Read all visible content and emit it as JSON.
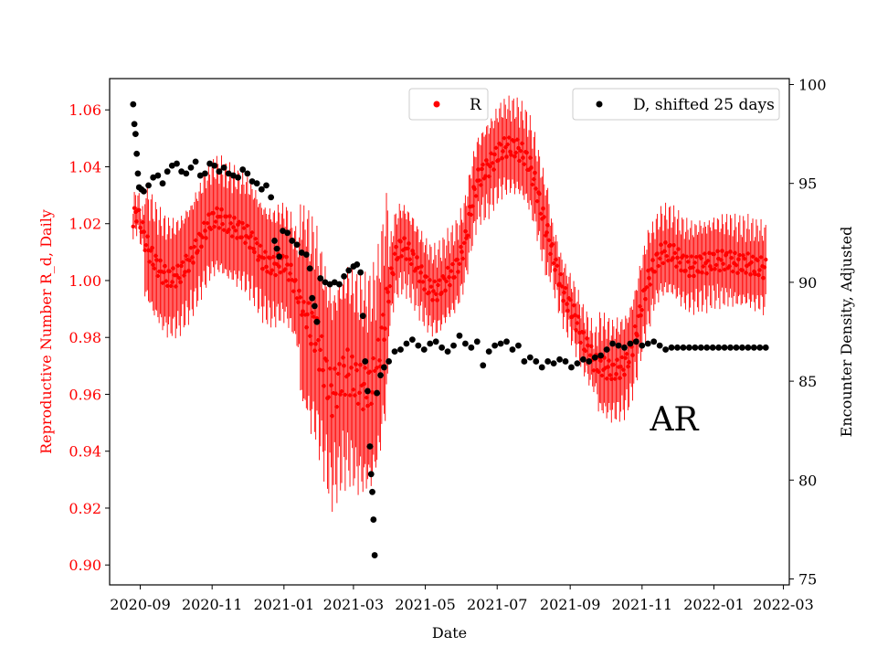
{
  "chart_data": {
    "type": "scatter",
    "annotation": "AR",
    "xlabel": "Date",
    "ylabel_left": "Reproductive Number R_d, Daily",
    "ylabel_right": "Encounter Density, Adjusted",
    "xlim": [
      "2020-08-06",
      "2022-03-06"
    ],
    "ylim_left": [
      0.893,
      1.071
    ],
    "ylim_right": [
      74.7,
      100.3
    ],
    "x_ticks": [
      "2020-09",
      "2020-11",
      "2021-01",
      "2021-03",
      "2021-05",
      "2021-07",
      "2021-09",
      "2021-11",
      "2022-01",
      "2022-03"
    ],
    "y_ticks_left": [
      "0.90",
      "0.92",
      "0.94",
      "0.96",
      "0.98",
      "1.00",
      "1.02",
      "1.04",
      "1.06"
    ],
    "y_ticks_right": [
      "75",
      "80",
      "85",
      "90",
      "95",
      "100"
    ],
    "colors": {
      "R": "#ff0000",
      "D": "#000000",
      "axis_left": "#ff0000"
    },
    "series": [
      {
        "name": "R",
        "axis": "left",
        "error_bars": true,
        "x": [
          "2020-08-26",
          "2020-08-28",
          "2020-09-01",
          "2020-09-05",
          "2020-09-09",
          "2020-09-14",
          "2020-09-19",
          "2020-09-24",
          "2020-09-29",
          "2020-10-04",
          "2020-10-09",
          "2020-10-14",
          "2020-10-19",
          "2020-10-24",
          "2020-10-29",
          "2020-11-03",
          "2020-11-08",
          "2020-11-13",
          "2020-11-18",
          "2020-11-23",
          "2020-11-28",
          "2020-12-03",
          "2020-12-08",
          "2020-12-13",
          "2020-12-18",
          "2020-12-23",
          "2020-12-28",
          "2021-01-02",
          "2021-01-07",
          "2021-01-12",
          "2021-01-17",
          "2021-01-22",
          "2021-01-27",
          "2021-01-30",
          "2021-02-02",
          "2021-02-05",
          "2021-02-08",
          "2021-02-11",
          "2021-02-14",
          "2021-02-19",
          "2021-02-24",
          "2021-03-01",
          "2021-03-06",
          "2021-03-11",
          "2021-03-16",
          "2021-03-21",
          "2021-03-26",
          "2021-03-31",
          "2021-04-05",
          "2021-04-10",
          "2021-04-15",
          "2021-04-20",
          "2021-04-25",
          "2021-04-30",
          "2021-05-05",
          "2021-05-10",
          "2021-05-15",
          "2021-05-20",
          "2021-05-25",
          "2021-05-30",
          "2021-06-04",
          "2021-06-09",
          "2021-06-14",
          "2021-06-19",
          "2021-06-24",
          "2021-06-29",
          "2021-07-04",
          "2021-07-09",
          "2021-07-14",
          "2021-07-19",
          "2021-07-24",
          "2021-07-29",
          "2021-08-03",
          "2021-08-08",
          "2021-08-13",
          "2021-08-18",
          "2021-08-23",
          "2021-08-28",
          "2021-09-02",
          "2021-09-07",
          "2021-09-12",
          "2021-09-17",
          "2021-09-22",
          "2021-09-27",
          "2021-10-02",
          "2021-10-07",
          "2021-10-12",
          "2021-10-17",
          "2021-10-22",
          "2021-10-27",
          "2021-11-01",
          "2021-11-06",
          "2021-11-11",
          "2021-11-16",
          "2021-11-21",
          "2021-11-26",
          "2021-12-01",
          "2021-12-06",
          "2021-12-11",
          "2021-12-16",
          "2021-12-21",
          "2021-12-26",
          "2021-12-31",
          "2022-01-05",
          "2022-01-10",
          "2022-01-15",
          "2022-01-20",
          "2022-01-25",
          "2022-01-30",
          "2022-02-04",
          "2022-02-09",
          "2022-02-14"
        ],
        "values": [
          1.019,
          1.025,
          1.021,
          1.014,
          1.01,
          1.006,
          1.003,
          1.001,
          1.001,
          1.002,
          1.005,
          1.008,
          1.012,
          1.016,
          1.02,
          1.022,
          1.022,
          1.02,
          1.019,
          1.018,
          1.017,
          1.015,
          1.012,
          1.008,
          1.006,
          1.005,
          1.006,
          1.006,
          1.002,
          0.996,
          0.99,
          0.985,
          0.982,
          0.978,
          0.973,
          0.968,
          0.963,
          0.96,
          0.962,
          0.966,
          0.968,
          0.966,
          0.963,
          0.962,
          0.963,
          0.969,
          0.982,
          0.996,
          1.008,
          1.012,
          1.011,
          1.008,
          1.004,
          1.0,
          0.997,
          0.996,
          0.998,
          1.001,
          1.003,
          1.007,
          1.014,
          1.026,
          1.035,
          1.038,
          1.04,
          1.043,
          1.046,
          1.047,
          1.047,
          1.046,
          1.044,
          1.04,
          1.033,
          1.024,
          1.016,
          1.008,
          1.0,
          0.994,
          0.99,
          0.985,
          0.979,
          0.975,
          0.971,
          0.97,
          0.969,
          0.968,
          0.969,
          0.97,
          0.974,
          0.982,
          0.992,
          1.0,
          1.005,
          1.009,
          1.01,
          1.01,
          1.008,
          1.006,
          1.005,
          1.005,
          1.006,
          1.006,
          1.007,
          1.007,
          1.007,
          1.007,
          1.006,
          1.006,
          1.006,
          1.005,
          1.005,
          1.004
        ]
      },
      {
        "name": "D, shifted 25 days",
        "axis": "right",
        "x": [
          "2020-08-26",
          "2020-08-27",
          "2020-08-28",
          "2020-08-29",
          "2020-08-30",
          "2020-08-31",
          "2020-09-02",
          "2020-09-04",
          "2020-09-08",
          "2020-09-12",
          "2020-09-16",
          "2020-09-20",
          "2020-09-24",
          "2020-09-28",
          "2020-10-02",
          "2020-10-06",
          "2020-10-10",
          "2020-10-14",
          "2020-10-18",
          "2020-10-22",
          "2020-10-26",
          "2020-10-30",
          "2020-11-03",
          "2020-11-07",
          "2020-11-11",
          "2020-11-15",
          "2020-11-19",
          "2020-11-23",
          "2020-11-27",
          "2020-12-01",
          "2020-12-05",
          "2020-12-09",
          "2020-12-13",
          "2020-12-17",
          "2020-12-21",
          "2020-12-24",
          "2020-12-26",
          "2020-12-28",
          "2020-12-31",
          "2021-01-04",
          "2021-01-08",
          "2021-01-12",
          "2021-01-16",
          "2021-01-20",
          "2021-01-23",
          "2021-01-25",
          "2021-01-27",
          "2021-01-29",
          "2021-02-01",
          "2021-02-05",
          "2021-02-09",
          "2021-02-13",
          "2021-02-17",
          "2021-02-21",
          "2021-02-25",
          "2021-03-01",
          "2021-03-04",
          "2021-03-07",
          "2021-03-09",
          "2021-03-11",
          "2021-03-13",
          "2021-03-15",
          "2021-03-16",
          "2021-03-17",
          "2021-03-18",
          "2021-03-19",
          "2021-03-21",
          "2021-03-24",
          "2021-03-27",
          "2021-03-31",
          "2021-04-05",
          "2021-04-10",
          "2021-04-15",
          "2021-04-20",
          "2021-04-25",
          "2021-04-30",
          "2021-05-05",
          "2021-05-10",
          "2021-05-15",
          "2021-05-20",
          "2021-05-25",
          "2021-05-30",
          "2021-06-04",
          "2021-06-09",
          "2021-06-14",
          "2021-06-19",
          "2021-06-24",
          "2021-06-29",
          "2021-07-04",
          "2021-07-09",
          "2021-07-14",
          "2021-07-19",
          "2021-07-24",
          "2021-07-29",
          "2021-08-03",
          "2021-08-08",
          "2021-08-13",
          "2021-08-18",
          "2021-08-23",
          "2021-08-28",
          "2021-09-02",
          "2021-09-07",
          "2021-09-12",
          "2021-09-17",
          "2021-09-22",
          "2021-09-27",
          "2021-10-02",
          "2021-10-07",
          "2021-10-12",
          "2021-10-17",
          "2021-10-22",
          "2021-10-27",
          "2021-11-01",
          "2021-11-06",
          "2021-11-11",
          "2021-11-16",
          "2021-11-21",
          "2021-11-26",
          "2021-12-01",
          "2021-12-06",
          "2021-12-11",
          "2021-12-16",
          "2021-12-21",
          "2021-12-26",
          "2021-12-31",
          "2022-01-05",
          "2022-01-10",
          "2022-01-15",
          "2022-01-20",
          "2022-01-25",
          "2022-01-30",
          "2022-02-04",
          "2022-02-09",
          "2022-02-14"
        ],
        "values": [
          99.0,
          98.0,
          97.5,
          96.5,
          95.5,
          94.8,
          94.7,
          94.6,
          94.9,
          95.3,
          95.4,
          95.0,
          95.6,
          95.9,
          96.0,
          95.6,
          95.5,
          95.8,
          96.1,
          95.4,
          95.5,
          96.0,
          95.9,
          95.6,
          95.8,
          95.5,
          95.4,
          95.3,
          95.7,
          95.5,
          95.1,
          95.0,
          94.7,
          94.9,
          94.3,
          92.1,
          91.7,
          91.3,
          92.6,
          92.5,
          92.1,
          91.9,
          91.5,
          91.4,
          90.7,
          89.2,
          88.8,
          88.0,
          90.2,
          90.0,
          89.9,
          90.0,
          89.9,
          90.3,
          90.6,
          90.8,
          90.9,
          90.5,
          88.3,
          86.0,
          84.5,
          81.7,
          80.3,
          79.4,
          78.0,
          76.2,
          84.4,
          85.3,
          85.7,
          86.0,
          86.5,
          86.6,
          86.9,
          87.1,
          86.8,
          86.6,
          86.9,
          87.0,
          86.7,
          86.5,
          86.8,
          87.3,
          86.9,
          86.7,
          87.0,
          85.8,
          86.5,
          86.8,
          86.9,
          87.0,
          86.6,
          86.8,
          86.0,
          86.2,
          86.0,
          85.7,
          86.0,
          85.9,
          86.1,
          86.0,
          85.7,
          85.9,
          86.1,
          86.0,
          86.2,
          86.3,
          86.6,
          86.9,
          86.8,
          86.7,
          86.9,
          87.0,
          86.8,
          86.9,
          87.0,
          86.8,
          86.6,
          86.7,
          86.7,
          86.7,
          86.7,
          86.7,
          86.7,
          86.7,
          86.7,
          86.7,
          86.7,
          86.7,
          86.7,
          86.7,
          86.7,
          86.7,
          86.7,
          86.7
        ]
      }
    ]
  }
}
